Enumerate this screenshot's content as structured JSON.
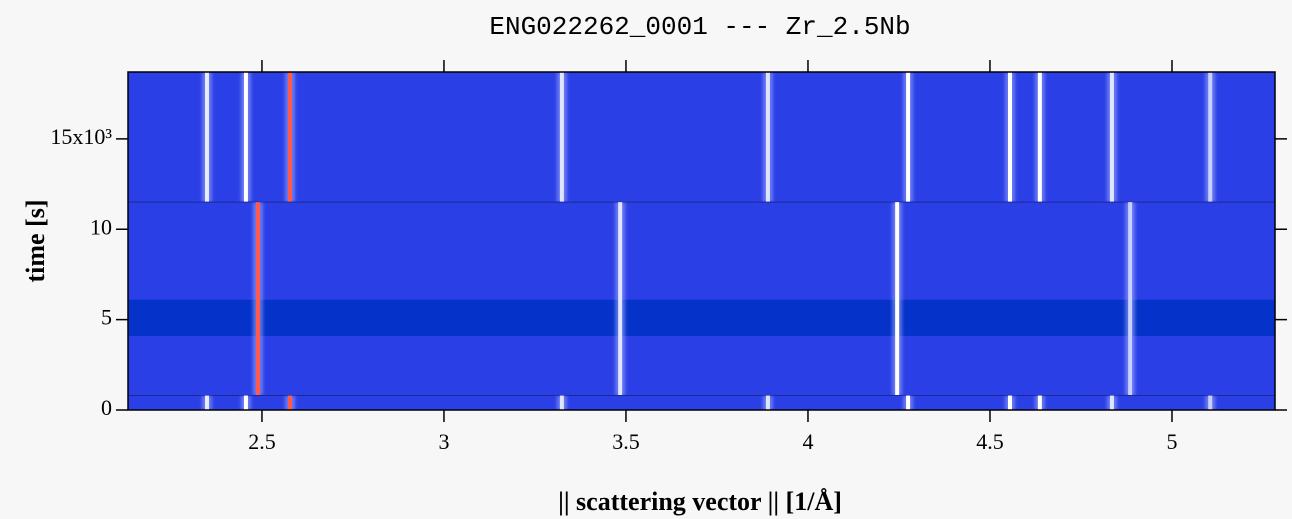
{
  "chart_data": {
    "type": "heatmap",
    "title": "ENG022262_0001 --- Zr_2.5Nb",
    "x_label": "|| scattering vector || [1/Å]",
    "y_label": "time [s]",
    "xlim": [
      2.132,
      5.283
    ],
    "xticks": [
      2.5,
      3.0,
      3.5,
      4.0,
      4.5,
      5.0
    ],
    "ylim": [
      0,
      18.7
    ],
    "yticks": [
      0,
      5,
      10,
      {
        "value": 15,
        "label": "15x10³"
      }
    ],
    "background": "#2b3fe6",
    "gap": [
      4.1,
      6.1
    ],
    "gap_color": "#0532c8",
    "segments": [
      {
        "tlim": [
          11.5,
          18.7
        ],
        "peaks": [
          2.349,
          2.456,
          2.577,
          3.324,
          3.89,
          4.275,
          4.555,
          4.637,
          4.835,
          5.105
        ],
        "colors": [
          "#e8ecff",
          "#ffffff",
          "#ff5a4a",
          "#dfe4ff",
          "#dfe4ff",
          "#ffffff",
          "#ffffff",
          "#ffffff",
          "#dfe4ff",
          "#c9d0ff"
        ]
      },
      {
        "tlim": [
          0.8,
          11.5
        ],
        "peaks": [
          2.489,
          3.484,
          4.245,
          4.885
        ],
        "colors": [
          "#ff5a4a",
          "#dfe4ff",
          "#ffffff",
          "#c9d0ff"
        ]
      },
      {
        "tlim": [
          0,
          0.8
        ],
        "peaks": [
          2.349,
          2.456,
          2.577,
          3.324,
          3.89,
          4.275,
          4.555,
          4.637,
          4.835,
          5.105
        ],
        "colors": [
          "#e8ecff",
          "#ffffff",
          "#ff5a4a",
          "#dfe4ff",
          "#dfe4ff",
          "#ffffff",
          "#ffffff",
          "#ffffff",
          "#dfe4ff",
          "#c9d0ff"
        ]
      }
    ]
  }
}
